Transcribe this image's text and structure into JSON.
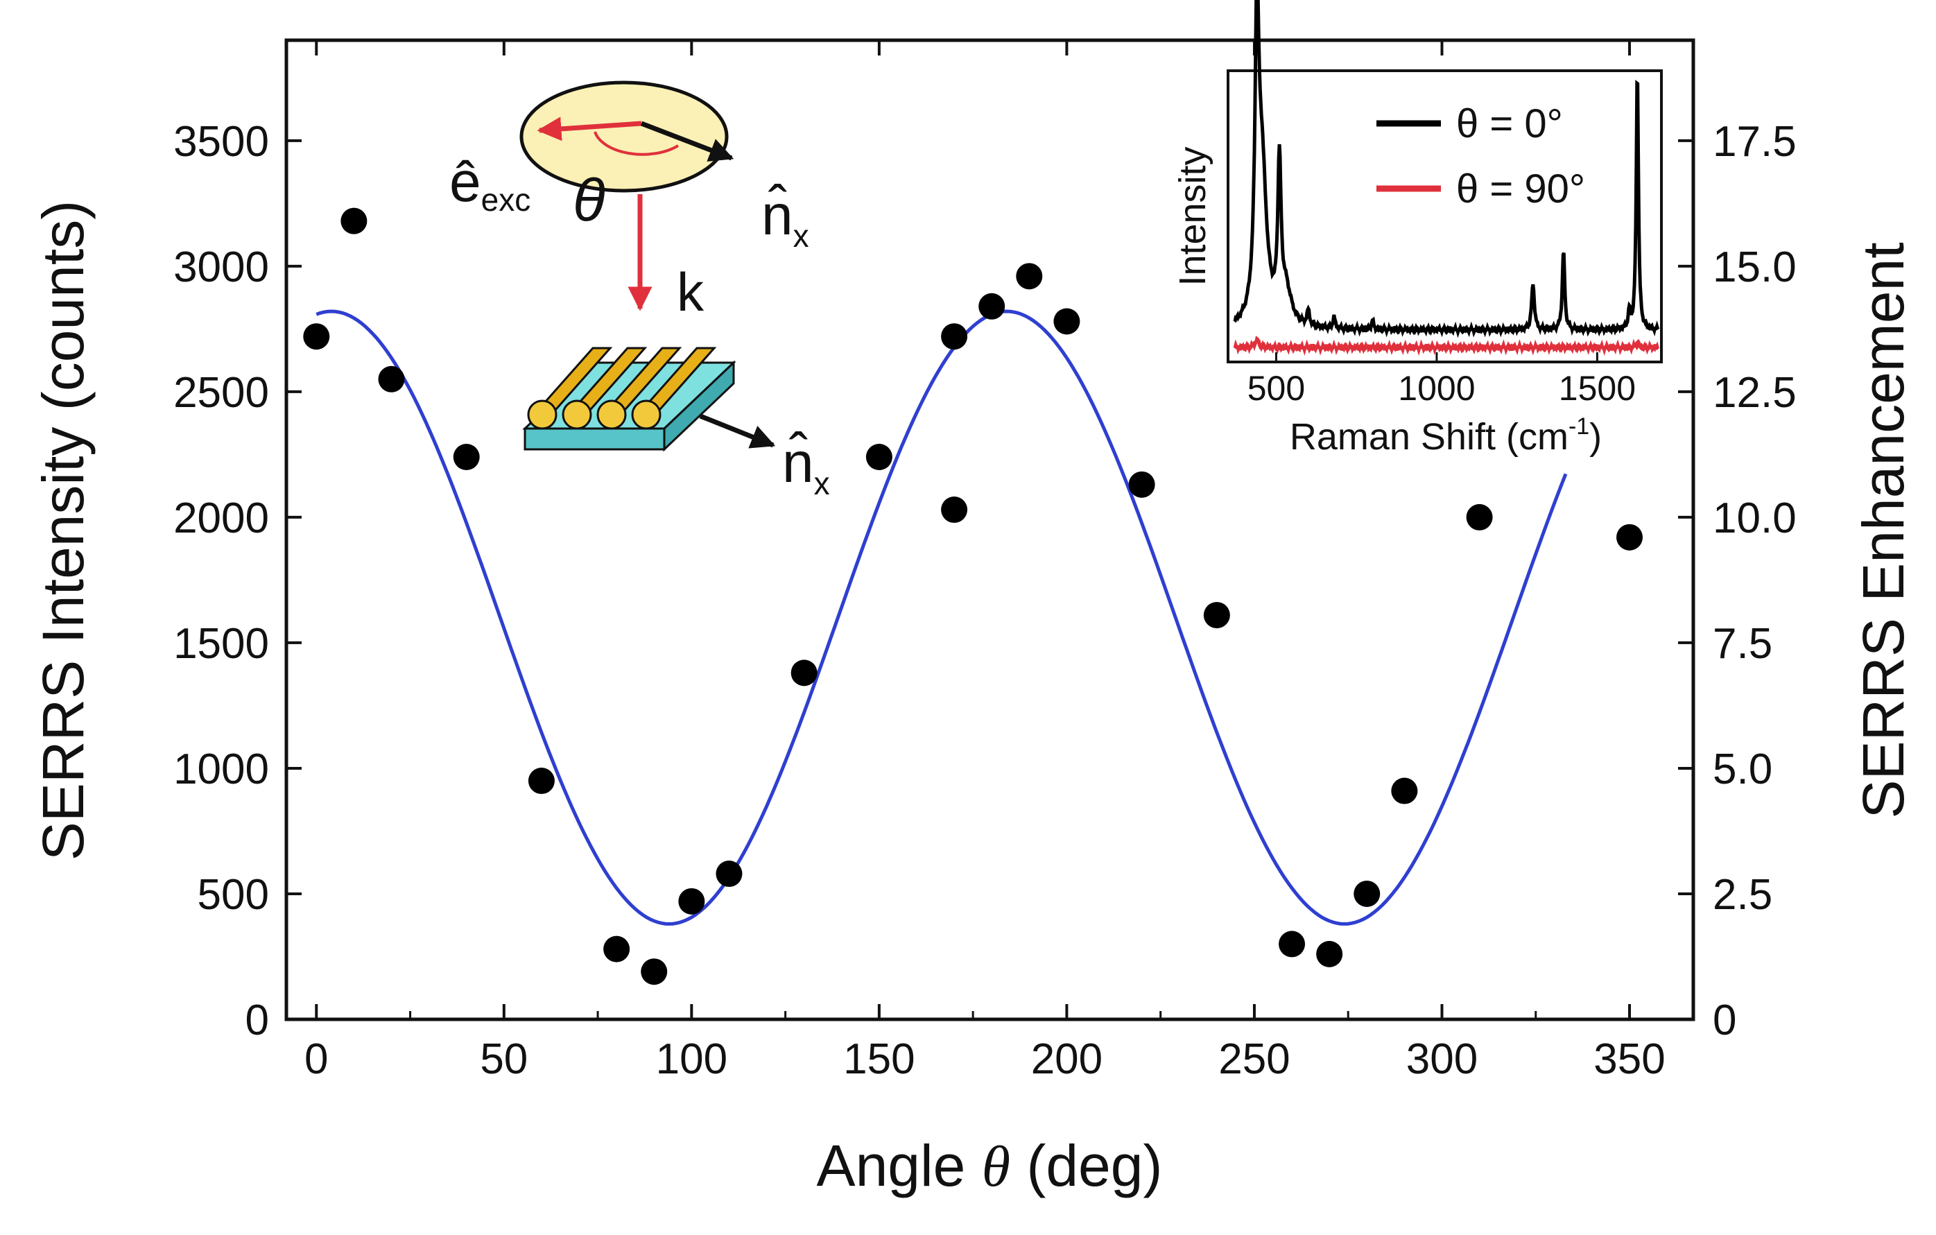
{
  "chart_data": [
    {
      "type": "scatter",
      "role": "main",
      "xlabel_prefix": "Angle",
      "xlabel_symbol": "θ",
      "xlabel_suffix": "(deg)",
      "ylabel": "SERRS Intensity (counts)",
      "y2label": "SERRS Enhancement",
      "xlim": [
        -8,
        367
      ],
      "ylim": [
        0,
        3900
      ],
      "y2lim": [
        0,
        19.5
      ],
      "x_ticks": [
        0,
        50,
        100,
        150,
        200,
        250,
        300,
        350
      ],
      "x_tick_labels": [
        "0",
        "50",
        "100",
        "150",
        "200",
        "250",
        "300",
        "350"
      ],
      "y_ticks": [
        0,
        500,
        1000,
        1500,
        2000,
        2500,
        3000,
        3500
      ],
      "y_tick_labels": [
        "0",
        "500",
        "1000",
        "1500",
        "2000",
        "2500",
        "3000",
        "3500"
      ],
      "y2_ticks": [
        0,
        2.5,
        5.0,
        7.5,
        10.0,
        12.5,
        15.0,
        17.5
      ],
      "y2_tick_labels": [
        "0",
        "2.5",
        "5.0",
        "7.5",
        "10.0",
        "12.5",
        "15.0",
        "17.5"
      ],
      "series": [
        {
          "name": "data",
          "marker": "circle",
          "color": "#000000",
          "x": [
            0,
            10,
            20,
            40,
            60,
            80,
            90,
            100,
            110,
            130,
            150,
            170,
            170,
            180,
            190,
            200,
            220,
            240,
            260,
            270,
            280,
            290,
            310,
            350
          ],
          "y": [
            2720,
            3180,
            2550,
            2240,
            950,
            280,
            190,
            470,
            580,
            1380,
            2240,
            2030,
            2720,
            2840,
            2960,
            2780,
            2130,
            1610,
            300,
            260,
            500,
            910,
            2000,
            1920
          ]
        },
        {
          "name": "fit",
          "line": "solid",
          "color": "#2f3fd0",
          "model": "y = A + B*cos(2*(x - x0) deg)",
          "params": {
            "A": 1600,
            "B": 1220,
            "x0": 4
          },
          "visible_x_range": [
            0,
            333
          ]
        }
      ]
    },
    {
      "type": "line",
      "role": "inset",
      "xlabel_main": "Raman Shift (cm",
      "xlabel_sup": "-1",
      "xlabel_close": ")",
      "ylabel": "Intensity",
      "xlim": [
        350,
        1700
      ],
      "ylim": [
        0,
        100
      ],
      "x_ticks": [
        500,
        1000,
        1500
      ],
      "x_tick_labels": [
        "500",
        "1000",
        "1500"
      ],
      "series": [
        {
          "name": "θ = 0°",
          "color": "#000000",
          "baseline": 11,
          "peaks": [
            {
              "x": 440,
              "h": 93,
              "w": 14
            },
            {
              "x": 455,
              "h": 55,
              "w": 35
            },
            {
              "x": 510,
              "h": 52,
              "w": 12
            },
            {
              "x": 530,
              "h": 12,
              "w": 40
            },
            {
              "x": 600,
              "h": 5,
              "w": 10
            },
            {
              "x": 680,
              "h": 4,
              "w": 8
            },
            {
              "x": 800,
              "h": 3,
              "w": 8
            },
            {
              "x": 1300,
              "h": 16,
              "w": 10
            },
            {
              "x": 1395,
              "h": 27,
              "w": 9
            },
            {
              "x": 1600,
              "h": 6,
              "w": 8
            },
            {
              "x": 1625,
              "h": 90,
              "w": 8
            }
          ]
        },
        {
          "name": "θ = 90°",
          "color": "#e0303c",
          "baseline": 5,
          "peaks": [
            {
              "x": 440,
              "h": 2.5,
              "w": 15
            },
            {
              "x": 1625,
              "h": 2,
              "w": 8
            }
          ]
        }
      ],
      "legend": [
        {
          "label": "θ = 0°",
          "color": "#000000"
        },
        {
          "label": "θ = 90°",
          "color": "#e0303c"
        }
      ]
    }
  ],
  "schematic": {
    "e_hat": "ê",
    "e_sub": "exc",
    "theta": "θ",
    "k": "k",
    "n_hat_top": "n̂",
    "n_hat_top_sub": "x",
    "n_hat_bottom": "n̂",
    "n_hat_bottom_sub": "x"
  },
  "colors": {
    "axis": "#111111",
    "points": "#000000",
    "fit": "#2f3fd0",
    "accent_red": "#e0303c",
    "gold": "#e8b018",
    "substrate": "#7fe0e0"
  }
}
